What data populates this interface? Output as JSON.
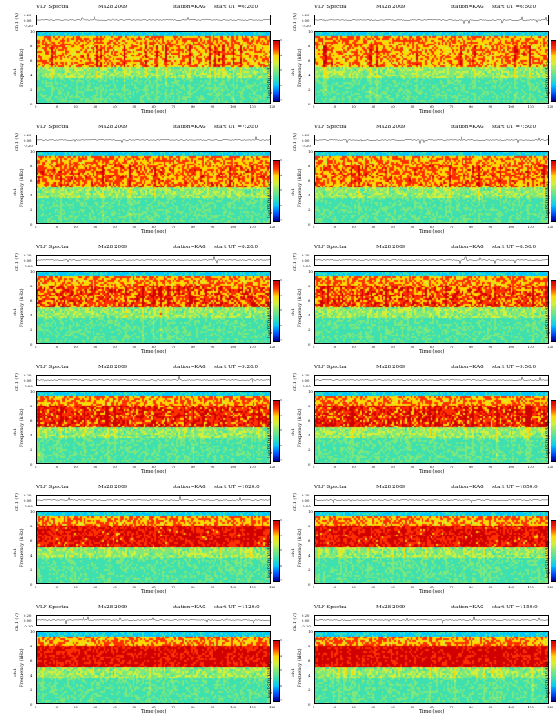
{
  "chart_data": {
    "type": "heatmap",
    "header_title": "VLF Spectra",
    "date": "Ma28 2009",
    "station": "station=KAG",
    "panels": [
      {
        "start_ut": "start UT =6:20:0"
      },
      {
        "start_ut": "start UT =6:50:0"
      },
      {
        "start_ut": "start UT =7:20:0"
      },
      {
        "start_ut": "start UT =7:50:0"
      },
      {
        "start_ut": "start UT =8:20:0"
      },
      {
        "start_ut": "start UT =8:50:0"
      },
      {
        "start_ut": "start UT =9:20:0"
      },
      {
        "start_ut": "start UT =9:50:0"
      },
      {
        "start_ut": "start UT =1020:0"
      },
      {
        "start_ut": "start UT =1050:0"
      },
      {
        "start_ut": "start UT =1120:0"
      },
      {
        "start_ut": "start UT =1150:0"
      }
    ],
    "top_ylabel": "ch.1 (V)",
    "top_yticks": [
      "0.20",
      "0.00",
      "-0.20"
    ],
    "ylabel_channel": "ch1",
    "ylabel": "Frequency (kHz)",
    "yticks": [
      "10",
      "8",
      "6",
      "4",
      "2",
      "0"
    ],
    "ylim": [
      0,
      10
    ],
    "xlabel": "Time (sec)",
    "xticks": [
      "0",
      "10",
      "20",
      "30",
      "40",
      "50",
      "60",
      "70",
      "80",
      "90",
      "100",
      "110",
      "120"
    ],
    "xlim": [
      0,
      120
    ],
    "colorbar_label": "log(PSD)(V²/Hz)",
    "colorbar_ticks": [
      "-3",
      "-4",
      "-5",
      "-6",
      "-7"
    ],
    "colormap": [
      "#00009a",
      "#0050ff",
      "#00c8ff",
      "#3ee0b0",
      "#7fe87a",
      "#d4f03a",
      "#ffd800",
      "#ff3000",
      "#d00000"
    ]
  }
}
